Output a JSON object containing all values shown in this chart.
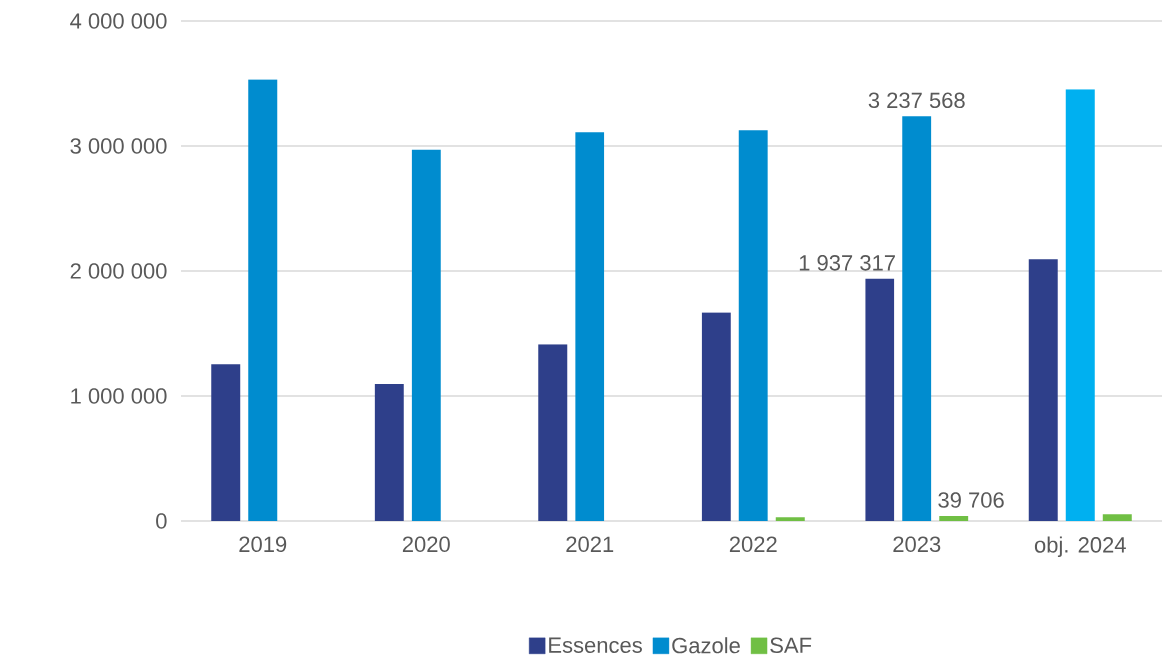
{
  "chart_data": {
    "type": "bar",
    "categories": [
      "2019",
      "2020",
      "2021",
      "2022",
      "2023",
      "obj. 2024"
    ],
    "series": [
      {
        "name": "Essences",
        "color": "#2e3f8a",
        "values": [
          1254000,
          1096000,
          1413000,
          1667000,
          1937317,
          2093000
        ],
        "value_labels": [
          null,
          null,
          null,
          null,
          "1 937 317",
          null
        ]
      },
      {
        "name": "Gazole",
        "color": "#008ccf",
        "colors": [
          "#008ccf",
          "#008ccf",
          "#008ccf",
          "#008ccf",
          "#008ccf",
          "#00b0f0"
        ],
        "values": [
          3531000,
          2971000,
          3109000,
          3125000,
          3237568,
          3453000
        ],
        "value_labels": [
          null,
          null,
          null,
          null,
          "3 237 568",
          null
        ]
      },
      {
        "name": "SAF",
        "color": "#70bf44",
        "values": [
          null,
          null,
          null,
          30000,
          39706,
          55000
        ],
        "value_labels": [
          null,
          null,
          null,
          null,
          "39 706",
          null
        ]
      }
    ],
    "ylim": [
      0,
      4000000
    ],
    "yticks": [
      {
        "value": 0,
        "label": "0"
      },
      {
        "value": 1000000,
        "label": "1 000 000"
      },
      {
        "value": 2000000,
        "label": "2 000 000"
      },
      {
        "value": 3000000,
        "label": "3 000 000"
      },
      {
        "value": 4000000,
        "label": "4 000 000"
      }
    ],
    "grid": "y",
    "legend": "bottom"
  }
}
